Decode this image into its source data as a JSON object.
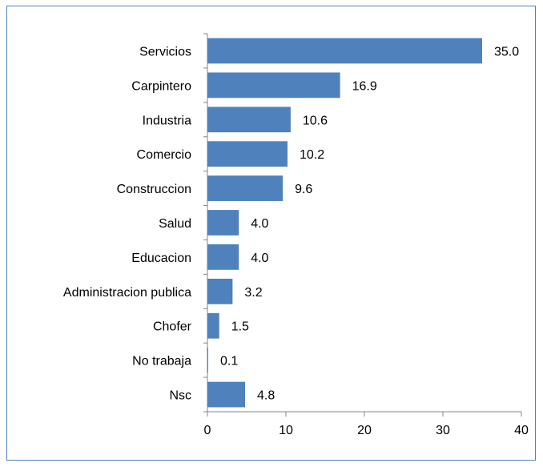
{
  "chart_data": {
    "type": "bar",
    "orientation": "horizontal",
    "title": "",
    "xlabel": "",
    "ylabel": "",
    "categories": [
      "Servicios",
      "Carpintero",
      "Industria",
      "Comercio",
      "Construccion",
      "Salud",
      "Educacion",
      "Administracion publica",
      "Chofer",
      "No trabaja",
      "Nsc"
    ],
    "values": [
      35.0,
      16.9,
      10.6,
      10.2,
      9.6,
      4.0,
      4.0,
      3.2,
      1.5,
      0.1,
      4.8
    ],
    "value_labels": [
      "35.0",
      "16.9",
      "10.6",
      "10.2",
      "9.6",
      "4.0",
      "4.0",
      "3.2",
      "1.5",
      "0.1",
      "4.8"
    ],
    "xlim": [
      0,
      40
    ],
    "xticks": [
      "0",
      "10",
      "20",
      "30",
      "40"
    ],
    "grid": false,
    "legend": "none",
    "bar_color": "#4f81bd",
    "frame_color": "#4f81bd"
  }
}
